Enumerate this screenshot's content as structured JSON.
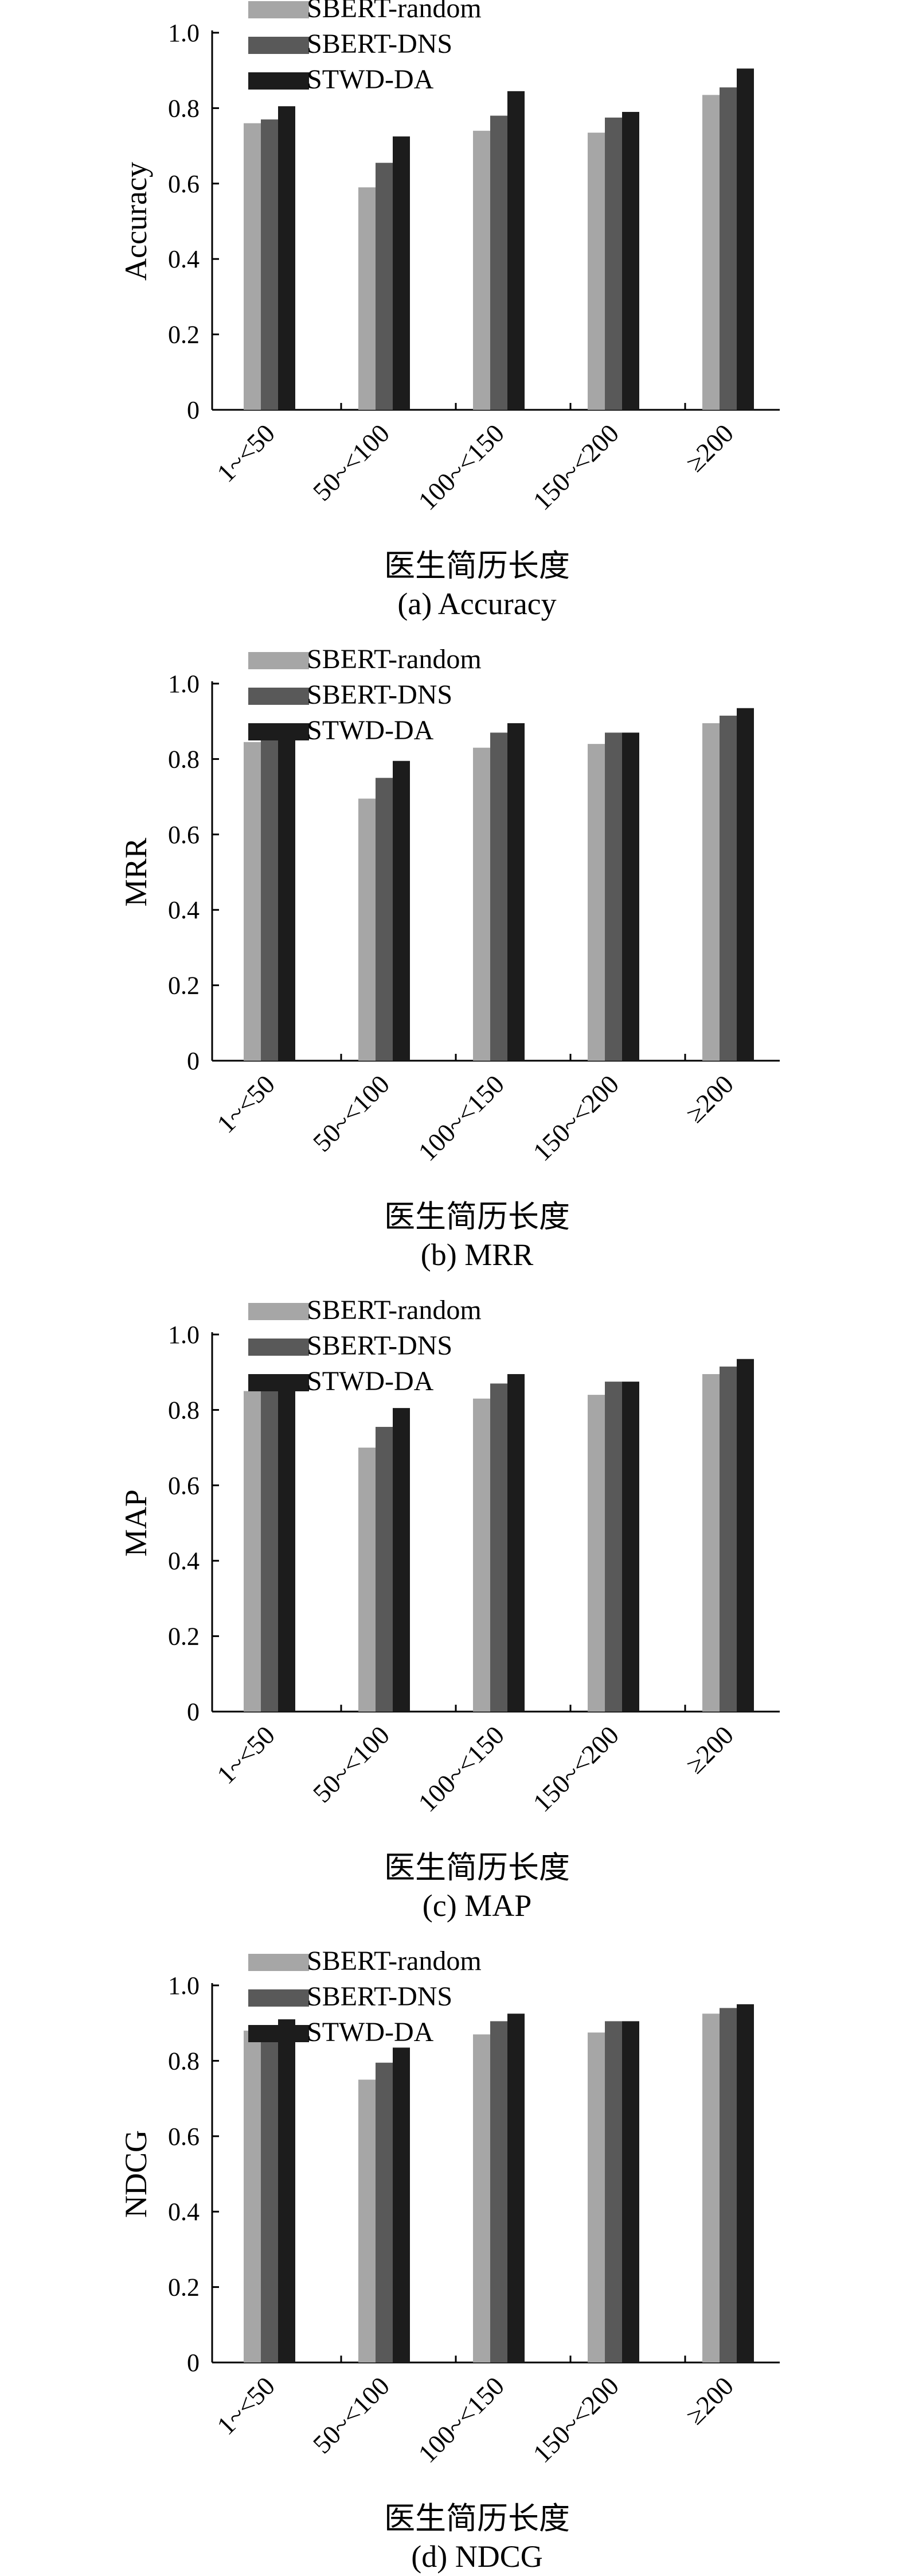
{
  "colors": {
    "series": [
      "#a6a6a6",
      "#595959",
      "#1c1c1c"
    ],
    "axis": "#000000"
  },
  "chart_data": [
    {
      "type": "bar",
      "categories": [
        "1~<50",
        "50~<100",
        "100~<150",
        "150~<200",
        "≥200"
      ],
      "series": [
        {
          "name": "SBERT-random",
          "values": [
            0.76,
            0.59,
            0.74,
            0.735,
            0.835
          ]
        },
        {
          "name": "SBERT-DNS",
          "values": [
            0.77,
            0.655,
            0.78,
            0.775,
            0.855
          ]
        },
        {
          "name": "STWD-DA",
          "values": [
            0.805,
            0.725,
            0.845,
            0.79,
            0.905
          ]
        }
      ],
      "yticks": [
        "0",
        "0.2",
        "0.4",
        "0.6",
        "0.8",
        "1.0"
      ],
      "ylim": [
        0,
        1.0
      ],
      "ylabel": "Accuracy",
      "xlabel": "医生简历长度",
      "caption": "(a) Accuracy",
      "legend": "top-left",
      "grid": false
    },
    {
      "type": "bar",
      "categories": [
        "1~<50",
        "50~<100",
        "100~<150",
        "150~<200",
        "≥200"
      ],
      "series": [
        {
          "name": "SBERT-random",
          "values": [
            0.845,
            0.695,
            0.83,
            0.84,
            0.895
          ]
        },
        {
          "name": "SBERT-DNS",
          "values": [
            0.85,
            0.75,
            0.87,
            0.87,
            0.915
          ]
        },
        {
          "name": "STWD-DA",
          "values": [
            0.875,
            0.795,
            0.895,
            0.87,
            0.935
          ]
        }
      ],
      "yticks": [
        "0",
        "0.2",
        "0.4",
        "0.6",
        "0.8",
        "1.0"
      ],
      "ylim": [
        0,
        1.0
      ],
      "ylabel": "MRR",
      "xlabel": "医生简历长度",
      "caption": "(b) MRR",
      "legend": "top-left",
      "grid": false
    },
    {
      "type": "bar",
      "categories": [
        "1~<50",
        "50~<100",
        "100~<150",
        "150~<200",
        "≥200"
      ],
      "series": [
        {
          "name": "SBERT-random",
          "values": [
            0.85,
            0.7,
            0.83,
            0.84,
            0.895
          ]
        },
        {
          "name": "SBERT-DNS",
          "values": [
            0.85,
            0.755,
            0.87,
            0.875,
            0.915
          ]
        },
        {
          "name": "STWD-DA",
          "values": [
            0.88,
            0.805,
            0.895,
            0.875,
            0.935
          ]
        }
      ],
      "yticks": [
        "0",
        "0.2",
        "0.4",
        "0.6",
        "0.8",
        "1.0"
      ],
      "ylim": [
        0,
        1.0
      ],
      "ylabel": "MAP",
      "xlabel": "医生简历长度",
      "caption": "(c) MAP",
      "legend": "top-left",
      "grid": false
    },
    {
      "type": "bar",
      "categories": [
        "1~<50",
        "50~<100",
        "100~<150",
        "150~<200",
        "≥200"
      ],
      "series": [
        {
          "name": "SBERT-random",
          "values": [
            0.88,
            0.75,
            0.87,
            0.875,
            0.925
          ]
        },
        {
          "name": "SBERT-DNS",
          "values": [
            0.885,
            0.795,
            0.905,
            0.905,
            0.94
          ]
        },
        {
          "name": "STWD-DA",
          "values": [
            0.91,
            0.835,
            0.925,
            0.905,
            0.95
          ]
        }
      ],
      "yticks": [
        "0",
        "0.2",
        "0.4",
        "0.6",
        "0.8",
        "1.0"
      ],
      "ylim": [
        0,
        1.0
      ],
      "ylabel": "NDCG",
      "xlabel": "医生简历长度",
      "caption": "(d) NDCG",
      "legend": "top-left",
      "grid": false
    }
  ]
}
